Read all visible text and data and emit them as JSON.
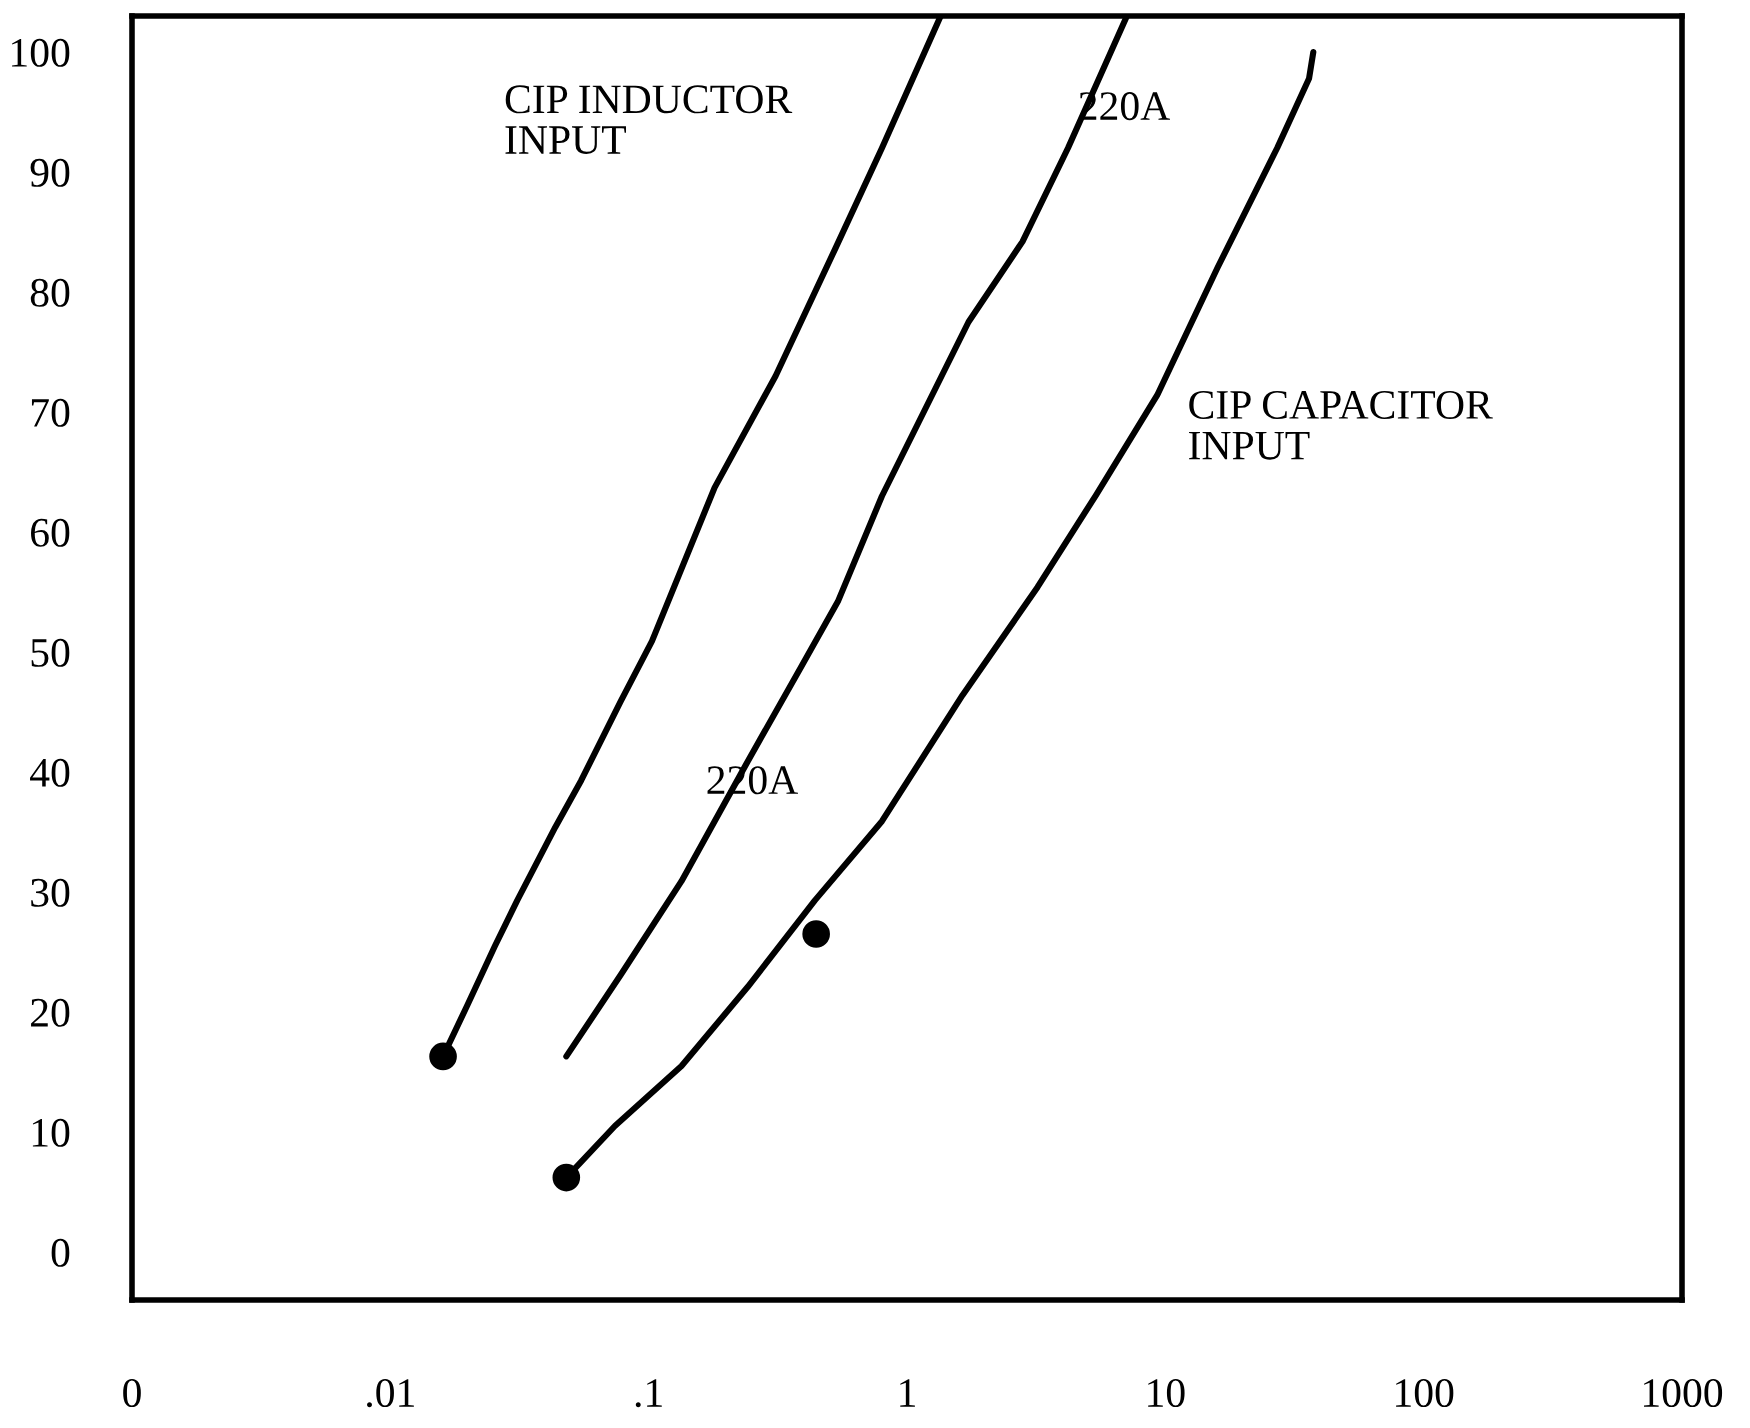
{
  "chart_data": {
    "type": "line",
    "xlim": [
      0.001,
      1000
    ],
    "ylim": [
      -4,
      103
    ],
    "log": "x",
    "xticks": [
      {
        "value": 0.001,
        "label": "0"
      },
      {
        "value": 0.01,
        "label": ".01"
      },
      {
        "value": 0.1,
        "label": ".1"
      },
      1,
      10,
      100,
      1000
    ],
    "yticks": [
      0,
      10,
      20,
      30,
      40,
      50,
      60,
      70,
      80,
      90,
      100
    ],
    "grid": false,
    "legend": false,
    "series": [
      {
        "color": "#000000",
        "marker": "none",
        "x": [
          0.016,
          0.0198,
          0.0254,
          0.031,
          0.0435,
          0.0548,
          0.078,
          0.103,
          0.18,
          0.31,
          0.53,
          0.8,
          1.35
        ],
        "values": [
          16.3,
          20.5,
          25.5,
          29.3,
          35.4,
          39.3,
          45.9,
          50.9,
          63.7,
          73,
          83.7,
          92,
          103
        ]
      },
      {
        "color": "#000000",
        "marker": "none",
        "x": [
          0.048,
          0.078,
          0.134,
          0.242,
          0.39,
          0.54,
          0.8,
          1.73,
          2.8,
          4.2,
          7.1
        ],
        "values": [
          16.3,
          23.1,
          30.9,
          40.9,
          48.8,
          54.2,
          63,
          77.5,
          84.2,
          92,
          103
        ]
      },
      {
        "color": "#000000",
        "marker": "none",
        "x": [
          0.048,
          0.074,
          0.134,
          0.242,
          0.44,
          0.8,
          1.64,
          3.2,
          5.4,
          9.3,
          15.9,
          27.1,
          36,
          37.4
        ],
        "values": [
          6.2,
          10.5,
          15.5,
          22.1,
          29.3,
          35.9,
          46.4,
          55.4,
          63.1,
          71.4,
          82,
          92,
          97.8,
          100
        ]
      },
      {
        "type": "scatter",
        "color": "#000000",
        "marker": "circle",
        "x": [
          0.016,
          0.048,
          0.445
        ],
        "values": [
          16.3,
          6.2,
          26.5
        ]
      }
    ],
    "annotations": [
      "CIP INDUCTOR\nINPUT",
      "220A",
      "220A",
      "CIP CAPACITOR\nINPUT"
    ]
  }
}
